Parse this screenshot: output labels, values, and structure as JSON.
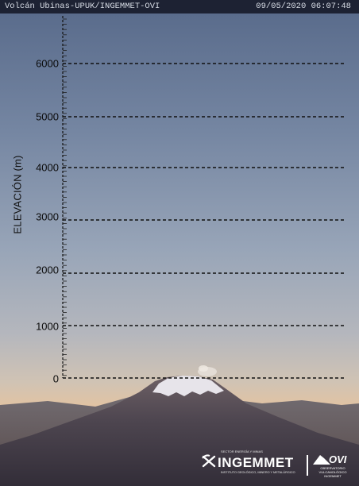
{
  "overlay": {
    "camera_label": "Volcán Ubinas-UPUK/INGEMMET-OVI",
    "timestamp": "09/05/2020 06:07:48"
  },
  "scale": {
    "axis_label": "ELEVACIÓN (m)",
    "ticks": [
      "6000",
      "5000",
      "4000",
      "3000",
      "2000",
      "1000",
      "0"
    ]
  },
  "logos": {
    "ingemmet_super": "SECTOR ENERGÍA Y MINAS",
    "ingemmet_name": "INGEMMET",
    "ingemmet_sub": "INSTITUTO GEOLÓGICO, MINERO Y METALÚRGICO",
    "ovi_name": "OVI",
    "ovi_sub": "OBSERVATORIO VULCANOLÓGICO INGEMMET"
  },
  "colors": {
    "sky_top": "#5f7190",
    "sky_mid": "#9aa6b8",
    "horizon": "#e0b98c",
    "guide_lines": "#111111"
  }
}
